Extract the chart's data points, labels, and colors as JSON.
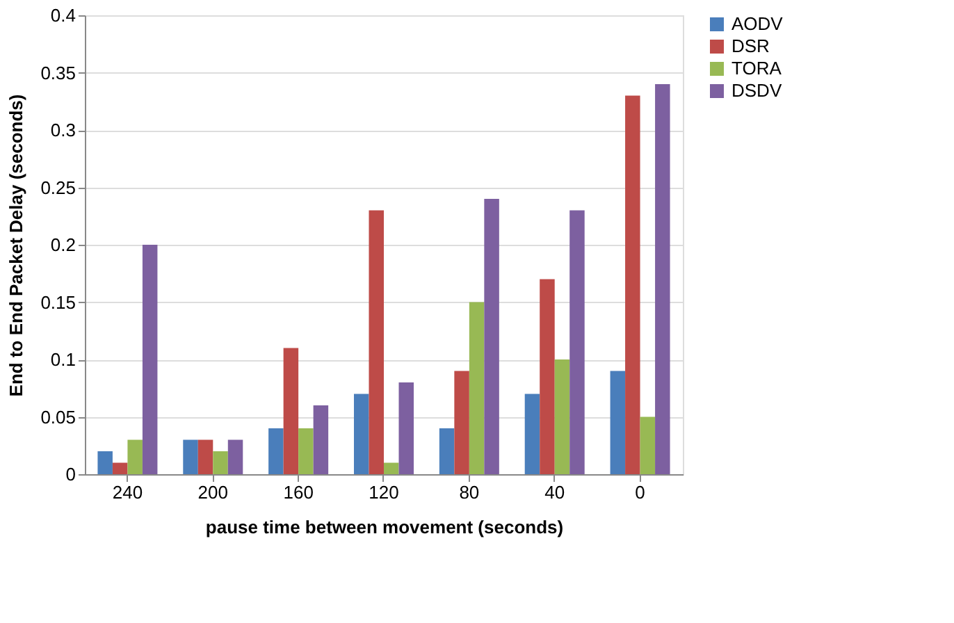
{
  "chart_data": {
    "type": "bar",
    "xlabel": "pause time between movement (seconds)",
    "ylabel": "End to End Packet Delay (seconds)",
    "categories": [
      "240",
      "200",
      "160",
      "120",
      "80",
      "40",
      "0"
    ],
    "series": [
      {
        "name": "AODV",
        "color": "#4a7ebb",
        "values": [
          0.02,
          0.03,
          0.04,
          0.07,
          0.04,
          0.07,
          0.09
        ]
      },
      {
        "name": "DSR",
        "color": "#be4b48",
        "values": [
          0.01,
          0.03,
          0.11,
          0.23,
          0.09,
          0.17,
          0.33
        ]
      },
      {
        "name": "TORA",
        "color": "#98b954",
        "values": [
          0.03,
          0.02,
          0.04,
          0.01,
          0.15,
          0.1,
          0.05
        ]
      },
      {
        "name": "DSDV",
        "color": "#7d60a0",
        "values": [
          0.2,
          0.03,
          0.06,
          0.08,
          0.24,
          0.23,
          0.34
        ]
      }
    ],
    "ylim": [
      0,
      0.4
    ],
    "yticks": [
      0,
      0.05,
      0.1,
      0.15,
      0.2,
      0.25,
      0.3,
      0.35,
      0.4
    ],
    "grid": "y",
    "legend": "right"
  }
}
